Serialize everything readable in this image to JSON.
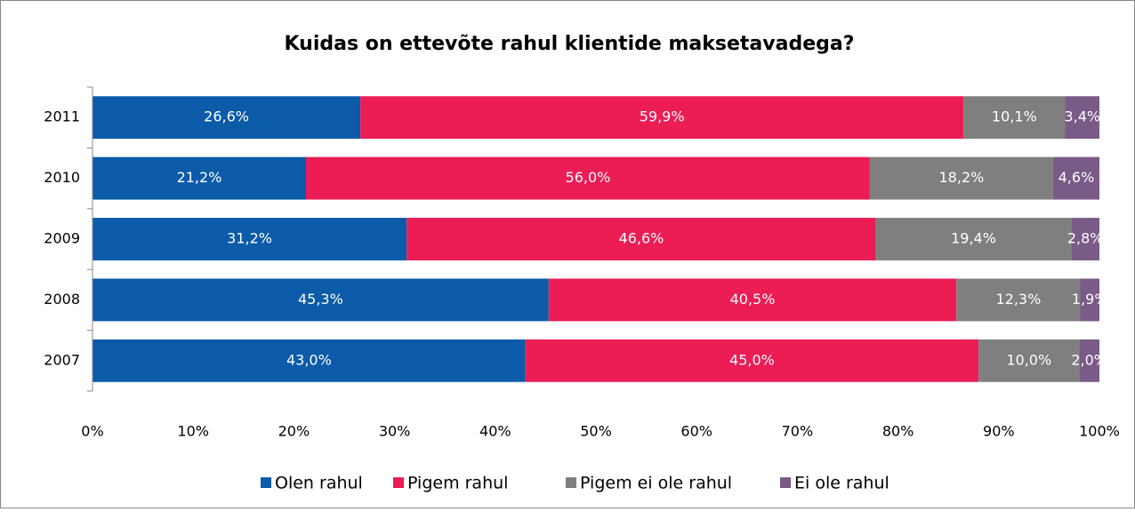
{
  "chart_data": {
    "type": "stacked-bar-horizontal",
    "title": "Kuidas on ettevõte rahul klientide maksetavadega?",
    "categories": [
      "2011",
      "2010",
      "2009",
      "2008",
      "2007"
    ],
    "series": [
      {
        "name": "Olen rahul",
        "color": "#0b5ba9",
        "values": [
          26.6,
          21.2,
          31.2,
          45.3,
          43.0
        ],
        "value_labels": [
          "26,6%",
          "21,2%",
          "31,2%",
          "45,3%",
          "43,0%"
        ]
      },
      {
        "name": "Pigem rahul",
        "color": "#ec1c54",
        "values": [
          59.9,
          56.0,
          46.6,
          40.5,
          45.0
        ],
        "value_labels": [
          "59,9%",
          "56,0%",
          "46,6%",
          "40,5%",
          "45,0%"
        ]
      },
      {
        "name": "Pigem ei ole rahul",
        "color": "#7f7f7f",
        "values": [
          10.1,
          18.2,
          19.4,
          12.3,
          10.0
        ],
        "value_labels": [
          "10,1%",
          "18,2%",
          "19,4%",
          "12,3%",
          "10,0%"
        ]
      },
      {
        "name": "Ei ole rahul",
        "color": "#7a5a86",
        "values": [
          3.4,
          4.6,
          2.8,
          1.9,
          2.0
        ],
        "value_labels": [
          "3,4%",
          "4,6%",
          "2,8%",
          "1,9%",
          "2,0%"
        ]
      }
    ],
    "xlim": [
      0,
      100
    ],
    "xticks": [
      {
        "value": 0,
        "label": "0%"
      },
      {
        "value": 10,
        "label": "10%"
      },
      {
        "value": 20,
        "label": "20%"
      },
      {
        "value": 30,
        "label": "30%"
      },
      {
        "value": 40,
        "label": "40%"
      },
      {
        "value": 50,
        "label": "50%"
      },
      {
        "value": 60,
        "label": "60%"
      },
      {
        "value": 70,
        "label": "70%"
      },
      {
        "value": 80,
        "label": "80%"
      },
      {
        "value": 90,
        "label": "90%"
      },
      {
        "value": 100,
        "label": "100%"
      }
    ],
    "legend": "bottom"
  }
}
